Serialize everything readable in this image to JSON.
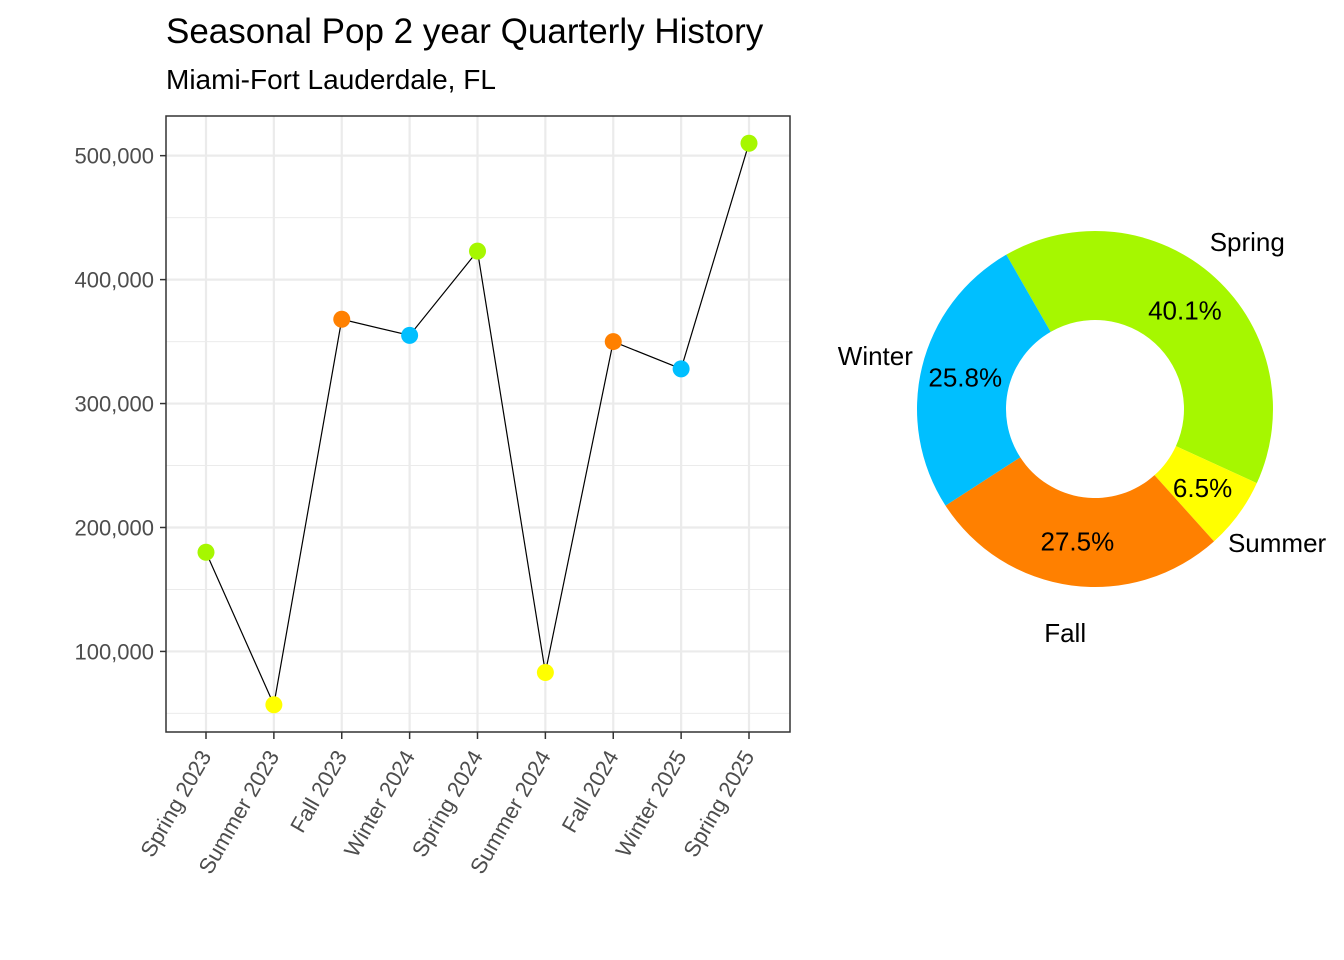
{
  "title": "Seasonal Pop 2 year Quarterly History",
  "subtitle": "Miami-Fort Lauderdale, FL",
  "colors": {
    "Spring": "#a6f700",
    "Summer": "#ffff00",
    "Fall": "#ff8000",
    "Winter": "#00bfff"
  },
  "chart_data": [
    {
      "type": "line",
      "categories": [
        "Spring 2023",
        "Summer 2023",
        "Fall 2023",
        "Winter 2024",
        "Spring 2024",
        "Summer 2024",
        "Fall 2024",
        "Winter 2025",
        "Spring 2025"
      ],
      "seasons": [
        "Spring",
        "Summer",
        "Fall",
        "Winter",
        "Spring",
        "Summer",
        "Fall",
        "Winter",
        "Spring"
      ],
      "values": [
        180000,
        57000,
        368000,
        355000,
        423000,
        83000,
        350000,
        328000,
        510000
      ],
      "ylim": [
        35000,
        532000
      ],
      "yticks": [
        100000,
        200000,
        300000,
        400000,
        500000
      ],
      "ytick_labels": [
        "100,000",
        "200,000",
        "300,000",
        "400,000",
        "500,000"
      ],
      "grid": true,
      "xlabel": "",
      "ylabel": ""
    },
    {
      "type": "pie",
      "donut": true,
      "categories": [
        "Spring",
        "Summer",
        "Fall",
        "Winter"
      ],
      "values": [
        40.1,
        6.5,
        27.5,
        25.8
      ],
      "percent_labels": [
        "40.1%",
        "6.5%",
        "27.5%",
        "25.8%"
      ]
    }
  ]
}
